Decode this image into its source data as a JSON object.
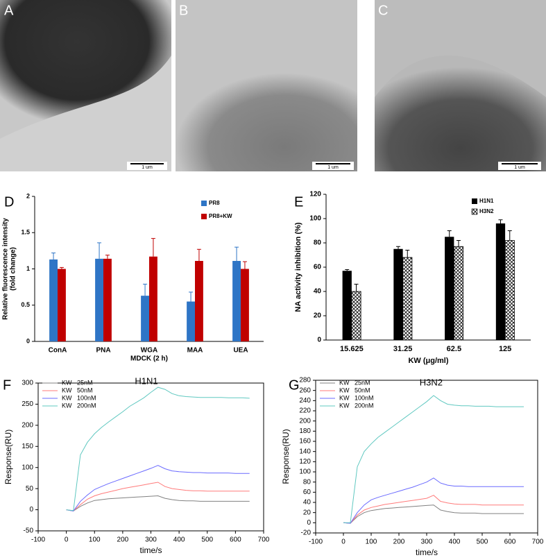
{
  "images": [
    {
      "panel": "A",
      "scale_bar": "1 um"
    },
    {
      "panel": "B",
      "scale_bar": "1 um"
    },
    {
      "panel": "C",
      "scale_bar": "1 um"
    }
  ],
  "chart_data": [
    {
      "type": "bar",
      "panel": "D",
      "ylabel": [
        "Relative fluorescence intensity",
        "(fold change)"
      ],
      "xlabel": "MDCK (2 h)",
      "categories": [
        "ConA",
        "PNA",
        "WGA",
        "MAA",
        "UEA"
      ],
      "series": [
        {
          "name": "PR8",
          "color": "#2e75c6",
          "values": [
            1.13,
            1.14,
            0.63,
            0.55,
            1.11
          ],
          "errors": [
            0.09,
            0.22,
            0.16,
            0.13,
            0.19
          ]
        },
        {
          "name": "PR8+KW",
          "color": "#c00000",
          "values": [
            1.0,
            1.14,
            1.17,
            1.11,
            1.0
          ],
          "errors": [
            0.02,
            0.05,
            0.25,
            0.16,
            0.1
          ]
        }
      ],
      "ylim": [
        0,
        2
      ],
      "yticks": [
        0,
        0.5,
        1,
        1.5,
        2
      ],
      "legend": "upper right"
    },
    {
      "type": "bar",
      "panel": "E",
      "ylabel": "NA activity inhibition (%)",
      "xlabel": "KW (μg/ml)",
      "categories": [
        "15.625",
        "31.25",
        "62.5",
        "125"
      ],
      "series": [
        {
          "name": "H1N1",
          "color": "#000000",
          "values": [
            57,
            75,
            85,
            96
          ],
          "errors": [
            1,
            2,
            5,
            3
          ]
        },
        {
          "name": "H3N2",
          "color": "#000000",
          "hatch": true,
          "values": [
            40,
            68,
            77,
            82
          ],
          "errors": [
            6,
            6,
            5,
            8
          ]
        }
      ],
      "ylim": [
        0,
        120
      ],
      "yticks": [
        0,
        20,
        40,
        60,
        80,
        100,
        120
      ],
      "legend": "upper right"
    },
    {
      "type": "line",
      "panel": "F",
      "title": "H1N1",
      "ylabel": "Response(RU)",
      "xlabel": "time/s",
      "x": [
        0,
        25,
        50,
        75,
        100,
        125,
        150,
        175,
        200,
        225,
        250,
        275,
        300,
        325,
        350,
        375,
        400,
        425,
        450,
        475,
        500,
        525,
        550,
        575,
        600,
        625,
        650
      ],
      "series": [
        {
          "name": "KW   25nM",
          "color": "#808080",
          "values": [
            0,
            -3,
            8,
            16,
            22,
            24,
            26,
            27,
            28,
            29,
            30,
            31,
            32,
            33,
            27,
            24,
            22,
            21,
            21,
            20,
            20,
            20,
            20,
            20,
            20,
            20,
            20
          ]
        },
        {
          "name": "KW   50nM",
          "color": "#ff7a7a",
          "values": [
            0,
            -3,
            12,
            25,
            33,
            38,
            42,
            46,
            50,
            53,
            56,
            59,
            62,
            65,
            55,
            50,
            48,
            46,
            45,
            45,
            44,
            44,
            44,
            44,
            44,
            44,
            44
          ]
        },
        {
          "name": "KW   100nM",
          "color": "#6a6aff",
          "values": [
            0,
            -3,
            20,
            35,
            48,
            55,
            62,
            68,
            74,
            80,
            86,
            92,
            98,
            105,
            97,
            92,
            90,
            89,
            88,
            88,
            87,
            87,
            87,
            87,
            86,
            86,
            86
          ]
        },
        {
          "name": "KW   200nM",
          "color": "#5fc8c0",
          "values": [
            0,
            -2,
            130,
            160,
            180,
            195,
            208,
            220,
            232,
            245,
            255,
            265,
            278,
            290,
            285,
            275,
            270,
            268,
            267,
            266,
            266,
            266,
            266,
            265,
            265,
            265,
            264
          ]
        }
      ],
      "xlim": [
        -100,
        700
      ],
      "xticks": [
        -100,
        0,
        100,
        200,
        300,
        400,
        500,
        600,
        700
      ],
      "ylim": [
        -50,
        300
      ],
      "yticks": [
        -50,
        0,
        50,
        100,
        150,
        200,
        250,
        300
      ],
      "legend": "upper left"
    },
    {
      "type": "line",
      "panel": "G",
      "title": "H3N2",
      "ylabel": "Response(RU)",
      "xlabel": "time/s",
      "x": [
        0,
        25,
        50,
        75,
        100,
        125,
        150,
        175,
        200,
        225,
        250,
        275,
        300,
        325,
        350,
        375,
        400,
        425,
        450,
        475,
        500,
        525,
        550,
        575,
        600,
        625,
        650
      ],
      "series": [
        {
          "name": "KW   25nM",
          "color": "#808080",
          "values": [
            0,
            -1,
            12,
            20,
            24,
            26,
            28,
            29,
            30,
            31,
            32,
            33,
            34,
            35,
            25,
            22,
            20,
            19,
            19,
            19,
            18,
            18,
            18,
            18,
            18,
            18,
            18
          ]
        },
        {
          "name": "KW   50nM",
          "color": "#ff7a7a",
          "values": [
            0,
            -1,
            15,
            25,
            30,
            33,
            36,
            38,
            40,
            42,
            44,
            46,
            48,
            54,
            42,
            39,
            37,
            36,
            36,
            36,
            35,
            35,
            35,
            35,
            35,
            35,
            35
          ]
        },
        {
          "name": "KW   100nM",
          "color": "#6a6aff",
          "values": [
            0,
            -1,
            20,
            35,
            45,
            50,
            54,
            58,
            62,
            66,
            70,
            75,
            80,
            88,
            78,
            74,
            72,
            72,
            71,
            71,
            71,
            71,
            71,
            71,
            71,
            71,
            71
          ]
        },
        {
          "name": "KW   200nM",
          "color": "#5fc8c0",
          "values": [
            0,
            0,
            110,
            140,
            155,
            168,
            178,
            188,
            198,
            208,
            218,
            228,
            238,
            250,
            240,
            233,
            231,
            230,
            230,
            229,
            229,
            229,
            228,
            228,
            228,
            228,
            228
          ]
        }
      ],
      "xlim": [
        -100,
        700
      ],
      "xticks": [
        -100,
        0,
        100,
        200,
        300,
        400,
        500,
        600,
        700
      ],
      "ylim": [
        -20,
        280
      ],
      "yticks": [
        -20,
        0,
        20,
        40,
        60,
        80,
        100,
        120,
        140,
        160,
        180,
        200,
        220,
        240,
        260,
        280
      ],
      "legend": "upper left"
    }
  ]
}
